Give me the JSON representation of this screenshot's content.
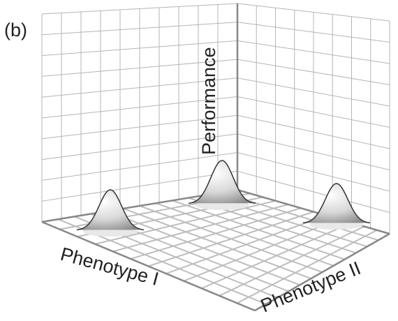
{
  "label": "(b)",
  "axes": {
    "z": "Performance",
    "x": "Phenotype I",
    "y": "Phenotype II"
  }
}
